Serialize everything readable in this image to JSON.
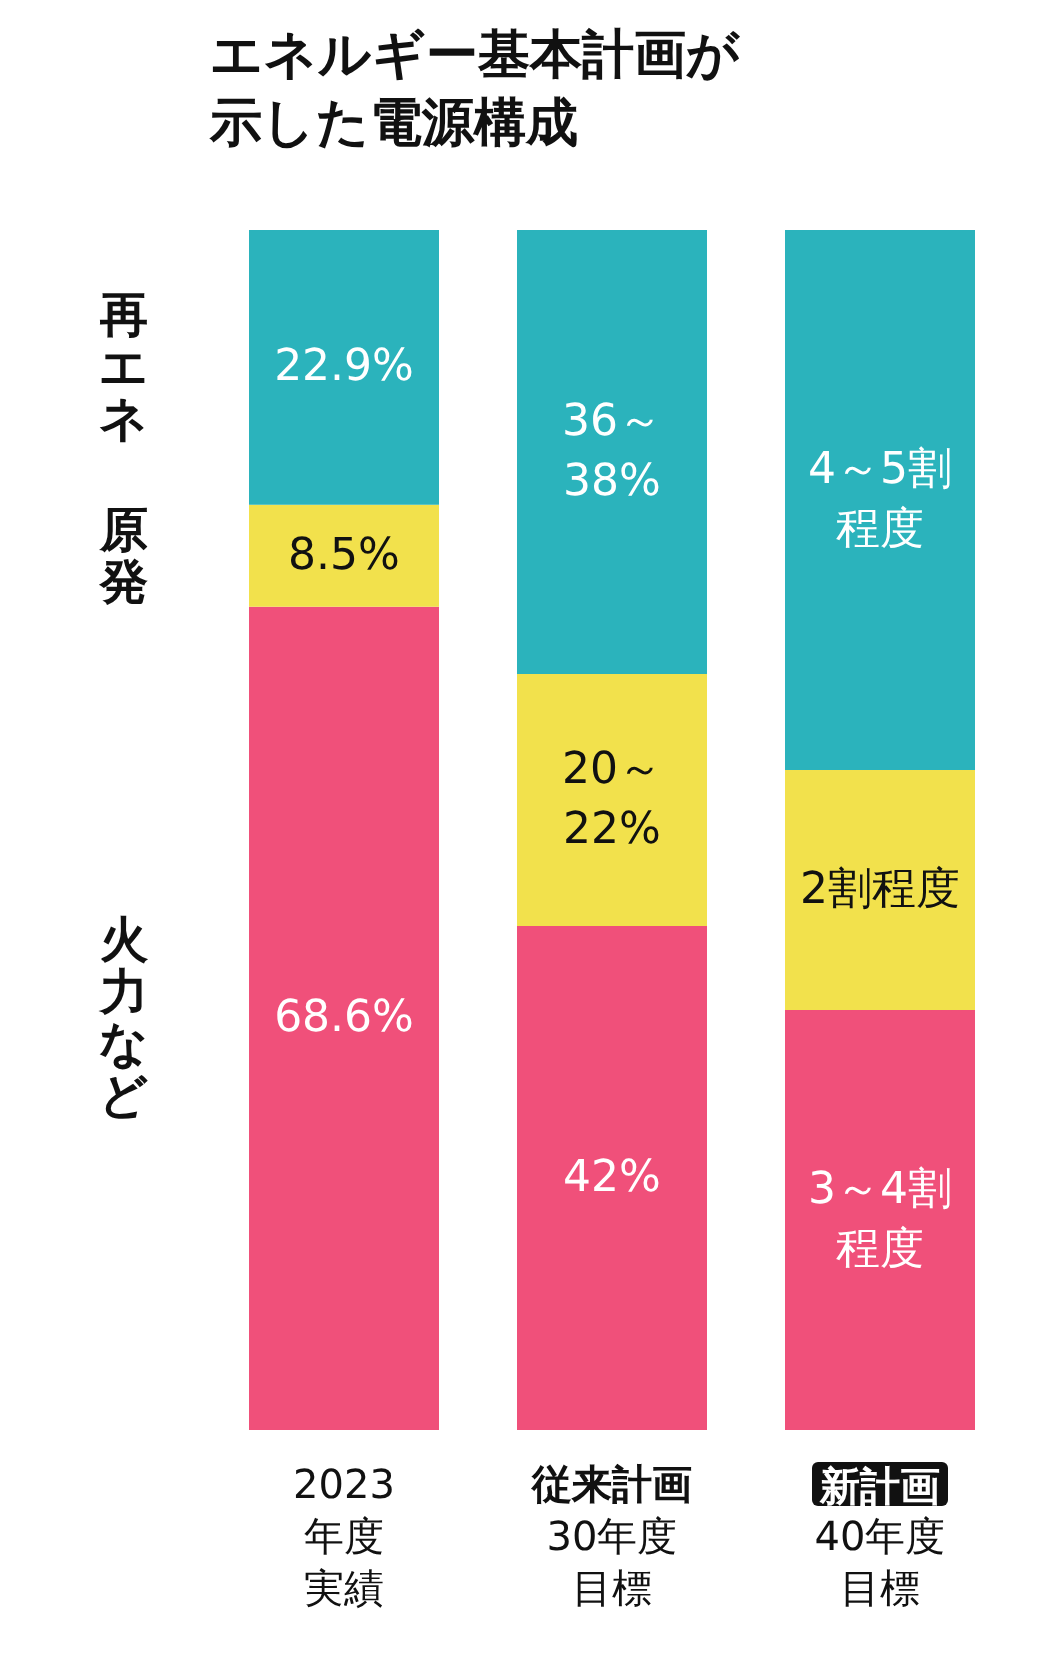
{
  "chart_data": {
    "type": "bar",
    "title": "エネルギー基本計画が示した電源構成",
    "categories": [
      "2023年度実績",
      "従来計画30年度目標",
      "新計画40年度目標"
    ],
    "stacked": true,
    "legend": false,
    "tick_labels": "x",
    "series": [
      {
        "name": "火力など",
        "color": "#f0507a",
        "values": [
          68.6,
          42,
          35
        ],
        "value_labels": [
          "68.6%",
          "42%",
          null
        ]
      },
      {
        "name": "原発",
        "color": "#f2e14c",
        "values": [
          8.5,
          21,
          20
        ],
        "value_labels": [
          "8.5%",
          null,
          null
        ]
      },
      {
        "name": "再エネ",
        "color": "#2bb3bc",
        "values": [
          22.9,
          37,
          45
        ],
        "value_labels": [
          "22.9%",
          null,
          null
        ]
      }
    ],
    "annotations": [
      "36～38%",
      "20～22%",
      "4～5割程度",
      "2割程度",
      "3～4割程度"
    ]
  }
}
